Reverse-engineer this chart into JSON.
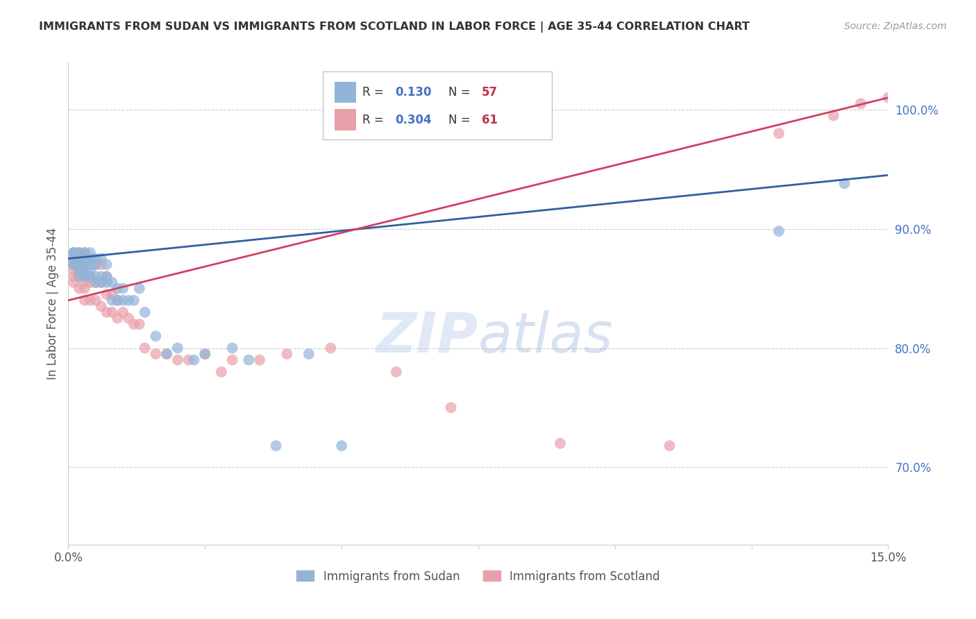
{
  "title": "IMMIGRANTS FROM SUDAN VS IMMIGRANTS FROM SCOTLAND IN LABOR FORCE | AGE 35-44 CORRELATION CHART",
  "source": "Source: ZipAtlas.com",
  "ylabel": "In Labor Force | Age 35-44",
  "xlim": [
    0.0,
    0.15
  ],
  "ylim": [
    0.635,
    1.04
  ],
  "xticks": [
    0.0,
    0.025,
    0.05,
    0.075,
    0.1,
    0.125,
    0.15
  ],
  "xticklabels": [
    "0.0%",
    "",
    "",
    "",
    "",
    "",
    "15.0%"
  ],
  "yticks_right": [
    0.7,
    0.8,
    0.9,
    1.0
  ],
  "ytick_right_labels": [
    "70.0%",
    "80.0%",
    "90.0%",
    "100.0%"
  ],
  "right_tick_color": "#4472C4",
  "blue_color": "#92B4D9",
  "pink_color": "#E8A0A8",
  "blue_line_color": "#3060A0",
  "pink_line_color": "#D04060",
  "blue_r": "0.130",
  "blue_n": "57",
  "pink_r": "0.304",
  "pink_n": "61",
  "sudan_x": [
    0.001,
    0.001,
    0.001,
    0.001,
    0.001,
    0.001,
    0.002,
    0.002,
    0.002,
    0.002,
    0.002,
    0.002,
    0.002,
    0.003,
    0.003,
    0.003,
    0.003,
    0.003,
    0.003,
    0.003,
    0.004,
    0.004,
    0.004,
    0.004,
    0.004,
    0.005,
    0.005,
    0.005,
    0.005,
    0.006,
    0.006,
    0.006,
    0.007,
    0.007,
    0.007,
    0.008,
    0.008,
    0.009,
    0.009,
    0.01,
    0.01,
    0.011,
    0.012,
    0.013,
    0.014,
    0.016,
    0.018,
    0.02,
    0.023,
    0.025,
    0.03,
    0.033,
    0.038,
    0.044,
    0.05,
    0.13,
    0.142
  ],
  "sudan_y": [
    0.87,
    0.87,
    0.875,
    0.875,
    0.88,
    0.88,
    0.86,
    0.865,
    0.87,
    0.875,
    0.875,
    0.878,
    0.88,
    0.86,
    0.862,
    0.865,
    0.87,
    0.875,
    0.878,
    0.88,
    0.86,
    0.865,
    0.87,
    0.875,
    0.88,
    0.855,
    0.86,
    0.87,
    0.875,
    0.855,
    0.86,
    0.875,
    0.855,
    0.86,
    0.87,
    0.84,
    0.855,
    0.84,
    0.85,
    0.84,
    0.85,
    0.84,
    0.84,
    0.85,
    0.83,
    0.81,
    0.795,
    0.8,
    0.79,
    0.795,
    0.8,
    0.79,
    0.718,
    0.795,
    0.718,
    0.898,
    0.938
  ],
  "scotland_x": [
    0.001,
    0.001,
    0.001,
    0.001,
    0.001,
    0.001,
    0.001,
    0.002,
    0.002,
    0.002,
    0.002,
    0.002,
    0.002,
    0.002,
    0.003,
    0.003,
    0.003,
    0.003,
    0.003,
    0.003,
    0.003,
    0.004,
    0.004,
    0.004,
    0.004,
    0.005,
    0.005,
    0.005,
    0.006,
    0.006,
    0.006,
    0.007,
    0.007,
    0.007,
    0.008,
    0.008,
    0.009,
    0.009,
    0.01,
    0.011,
    0.012,
    0.013,
    0.014,
    0.016,
    0.018,
    0.02,
    0.022,
    0.025,
    0.028,
    0.03,
    0.035,
    0.04,
    0.048,
    0.06,
    0.07,
    0.09,
    0.11,
    0.13,
    0.14,
    0.145,
    0.15
  ],
  "scotland_y": [
    0.855,
    0.86,
    0.865,
    0.87,
    0.872,
    0.875,
    0.88,
    0.85,
    0.86,
    0.865,
    0.87,
    0.875,
    0.878,
    0.88,
    0.84,
    0.85,
    0.855,
    0.86,
    0.87,
    0.875,
    0.88,
    0.84,
    0.855,
    0.86,
    0.875,
    0.84,
    0.855,
    0.87,
    0.835,
    0.855,
    0.87,
    0.83,
    0.845,
    0.86,
    0.83,
    0.845,
    0.825,
    0.84,
    0.83,
    0.825,
    0.82,
    0.82,
    0.8,
    0.795,
    0.795,
    0.79,
    0.79,
    0.795,
    0.78,
    0.79,
    0.79,
    0.795,
    0.8,
    0.78,
    0.75,
    0.72,
    0.718,
    0.98,
    0.995,
    1.005,
    1.01
  ],
  "watermark_zip": "ZIP",
  "watermark_atlas": "atlas",
  "background_color": "#FFFFFF",
  "grid_color": "#CCCCCC",
  "title_color": "#333333",
  "source_color": "#999999"
}
